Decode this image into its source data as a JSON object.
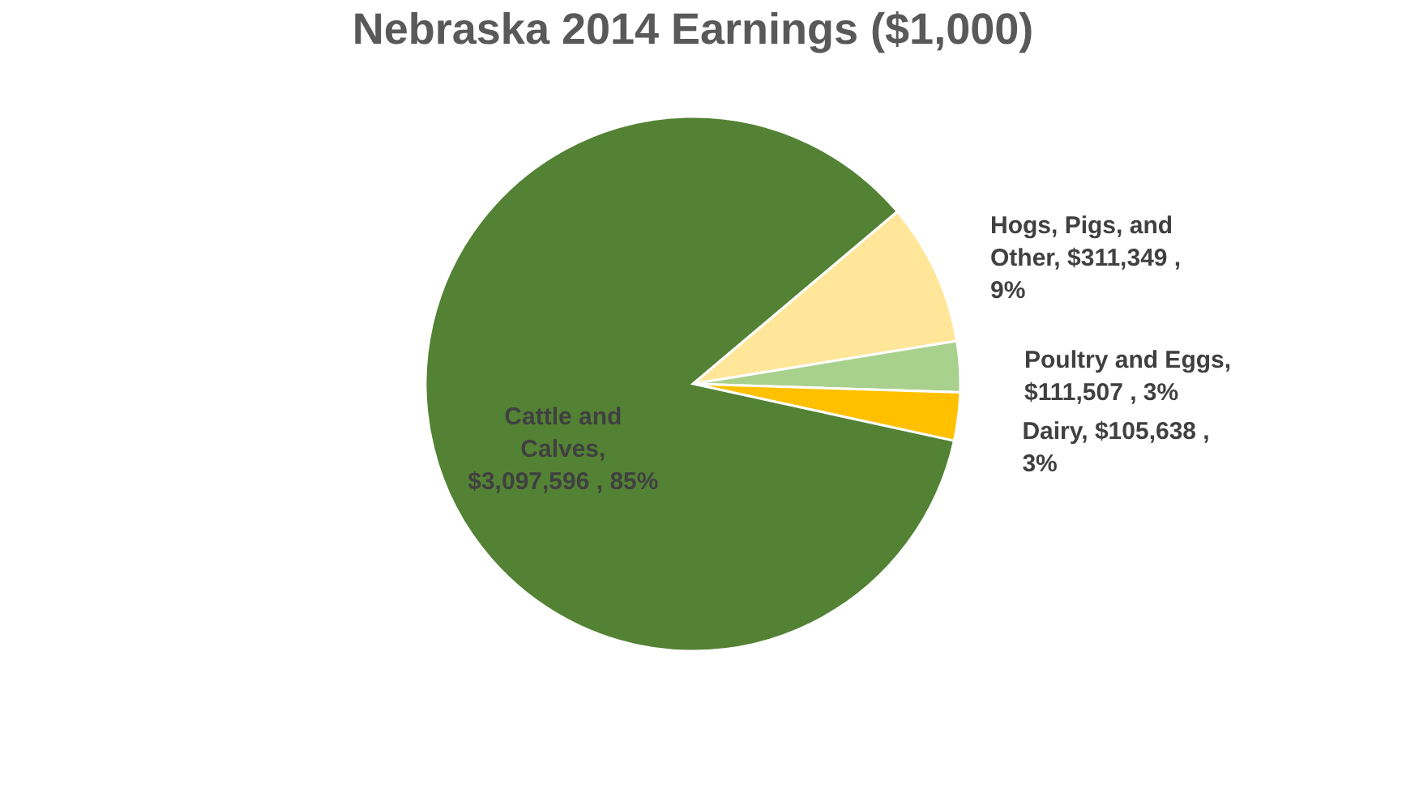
{
  "chart_data": {
    "type": "pie",
    "title": "Nebraska 2014 Earnings ($1,000)",
    "categories": [
      "Hogs, Pigs, and Other",
      "Poultry and Eggs",
      "Dairy",
      "Cattle and Calves"
    ],
    "values": [
      311349,
      111507,
      105638,
      3097596
    ],
    "colors": [
      "#ffe699",
      "#a9d18e",
      "#ffc000",
      "#548235"
    ],
    "value_labels": [
      ", $311,349 , 9%",
      ", $111,507 , 3%",
      ", $105,638 , 3%",
      ", $3,097,596 , 85%"
    ],
    "legend": false
  }
}
